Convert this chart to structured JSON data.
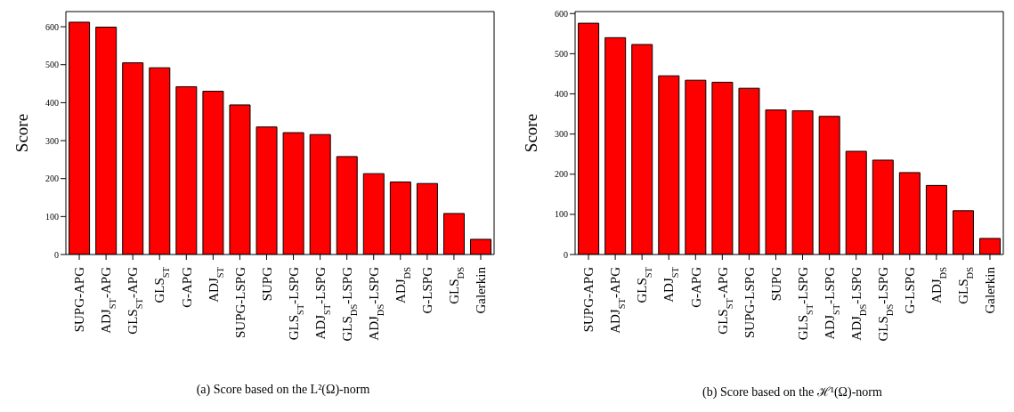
{
  "chart_data": [
    {
      "type": "bar",
      "ylabel": "Score",
      "categories": [
        "SUPG-APG",
        "ADJ$_{ST}$-APG",
        "GLS$_{ST}$-APG",
        "GLS$_{ST}$",
        "G-APG",
        "ADJ$_{ST}$",
        "SUPG-LSPG",
        "SUPG",
        "GLS$_{ST}$-LSPG",
        "ADJ$_{ST}$-LSPG",
        "GLS$_{DS}$-LSPG",
        "ADJ$_{DS}$-LSPG",
        "ADJ$_{DS}$",
        "G-LSPG",
        "GLS$_{DS}$",
        "Galerkin"
      ],
      "values": [
        612,
        599,
        505,
        492,
        442,
        430,
        394,
        336,
        321,
        316,
        258,
        213,
        191,
        187,
        108,
        40
      ],
      "color": "#ff0000",
      "ylim": [
        0,
        640
      ],
      "yticks": [
        0,
        100,
        200,
        300,
        400,
        500,
        600
      ],
      "grid": false,
      "annotations": [
        "(a) Score based on the L²(Ω)-norm"
      ]
    },
    {
      "type": "bar",
      "ylabel": "Score",
      "categories": [
        "SUPG-APG",
        "ADJ$_{ST}$-APG",
        "GLS$_{ST}$",
        "ADJ$_{ST}$",
        "G-APG",
        "GLS$_{ST}$-APG",
        "SUPG-LSPG",
        "SUPG",
        "GLS$_{ST}$-LSPG",
        "ADJ$_{ST}$-LSPG",
        "ADJ$_{DS}$-LSPG",
        "GLS$_{DS}$-LSPG",
        "G-LSPG",
        "ADJ$_{DS}$",
        "GLS$_{DS}$",
        "Galerkin"
      ],
      "values": [
        576,
        540,
        523,
        445,
        434,
        429,
        414,
        360,
        358,
        344,
        257,
        235,
        204,
        172,
        109,
        40
      ],
      "color": "#ff0000",
      "ylim": [
        0,
        605
      ],
      "yticks": [
        0,
        100,
        200,
        300,
        400,
        500,
        600
      ],
      "grid": false,
      "annotations": [
        "(b) Score based on the ℋ¹(Ω)-norm"
      ]
    }
  ]
}
